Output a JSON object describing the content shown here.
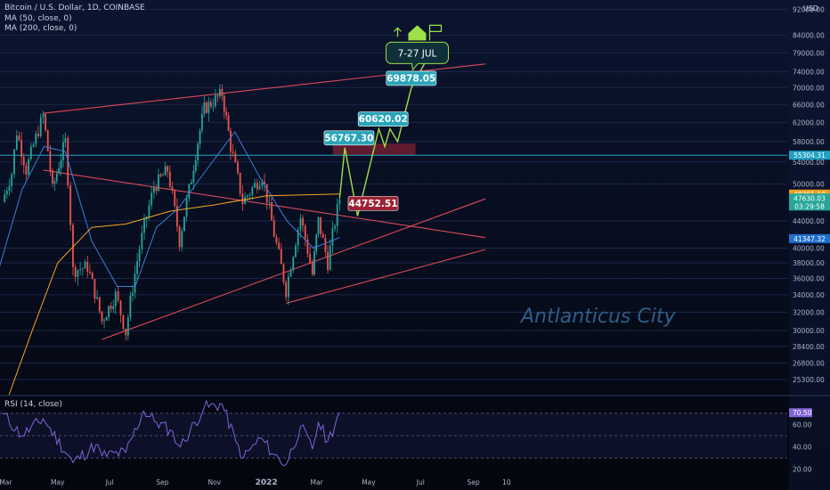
{
  "header": {
    "title": "Bitcoin / U.S. Dollar, 1D, COINBASE",
    "ma50_label": "MA (50, close, 0)",
    "ma200_label": "MA (200, close, 0)",
    "currency": "USD"
  },
  "watermark": "Antlanticus City",
  "colors": {
    "background_top": "#0b1530",
    "background_bottom": "#04060e",
    "up": "#26a69a",
    "down": "#ef5350",
    "ma50": "#3b7dd8",
    "ma200": "#f5a623",
    "projection": "#9ee04a",
    "trendline": "#d94a5a",
    "rsi": "#8065d6",
    "price_box": "#2aa5b8",
    "support_box": "#9b2335"
  },
  "chart_data": [
    {
      "type": "candlestick",
      "title": "Bitcoin / U.S. Dollar, 1D, COINBASE",
      "ylim": [
        24000,
        95000
      ],
      "y_ticks": [
        25300,
        26800,
        28400,
        30000,
        32000,
        34000,
        36000,
        38000,
        40000,
        44000,
        50000,
        54000,
        58000,
        62000,
        66000,
        70000,
        74000,
        79000,
        84000,
        92000
      ],
      "y_tick_labels": [
        "25300.00",
        "26800.00",
        "28400.00",
        "30000.00",
        "32000.00",
        "34000.00",
        "36000.00",
        "38000.00",
        "40000.00",
        "44000.00",
        "50000.00",
        "54000.00",
        "58000.00",
        "62000.00",
        "66000.00",
        "70000.00",
        "74000.00",
        "79000.00",
        "84000.00",
        "92000.00"
      ],
      "x_tick_labels": [
        "Mar",
        "May",
        "Jul",
        "Sep",
        "Nov",
        "2022",
        "Mar",
        "May",
        "Jul",
        "Sep",
        "10"
      ],
      "price_path": [
        {
          "date": "2021-02-25",
          "price": 47000
        },
        {
          "date": "2021-03-08",
          "price": 52000
        },
        {
          "date": "2021-03-14",
          "price": 60000
        },
        {
          "date": "2021-03-25",
          "price": 52500
        },
        {
          "date": "2021-04-14",
          "price": 63500
        },
        {
          "date": "2021-04-25",
          "price": 49000
        },
        {
          "date": "2021-05-10",
          "price": 58000
        },
        {
          "date": "2021-05-19",
          "price": 37000
        },
        {
          "date": "2021-06-05",
          "price": 37500
        },
        {
          "date": "2021-06-22",
          "price": 31000
        },
        {
          "date": "2021-07-08",
          "price": 34000
        },
        {
          "date": "2021-07-20",
          "price": 29800
        },
        {
          "date": "2021-08-05",
          "price": 40000
        },
        {
          "date": "2021-08-22",
          "price": 49500
        },
        {
          "date": "2021-09-07",
          "price": 52500
        },
        {
          "date": "2021-09-21",
          "price": 41000
        },
        {
          "date": "2021-10-05",
          "price": 51000
        },
        {
          "date": "2021-10-20",
          "price": 65000
        },
        {
          "date": "2021-11-10",
          "price": 68500
        },
        {
          "date": "2021-11-20",
          "price": 57000
        },
        {
          "date": "2021-12-04",
          "price": 47000
        },
        {
          "date": "2021-12-27",
          "price": 51500
        },
        {
          "date": "2022-01-10",
          "price": 42000
        },
        {
          "date": "2022-01-24",
          "price": 34500
        },
        {
          "date": "2022-02-10",
          "price": 44500
        },
        {
          "date": "2022-02-24",
          "price": 36500
        },
        {
          "date": "2022-03-03",
          "price": 44000
        },
        {
          "date": "2022-03-14",
          "price": 38000
        },
        {
          "date": "2022-03-28",
          "price": 47630
        }
      ],
      "series": [
        {
          "name": "MA (50, close, 0)",
          "points": [
            {
              "date": "2021-02-15",
              "price": 35000
            },
            {
              "date": "2021-03-20",
              "price": 49000
            },
            {
              "date": "2021-04-15",
              "price": 57000
            },
            {
              "date": "2021-05-10",
              "price": 56000
            },
            {
              "date": "2021-06-10",
              "price": 41000
            },
            {
              "date": "2021-07-10",
              "price": 35000
            },
            {
              "date": "2021-07-31",
              "price": 35000
            },
            {
              "date": "2021-08-25",
              "price": 43000
            },
            {
              "date": "2021-09-20",
              "price": 46000
            },
            {
              "date": "2021-10-20",
              "price": 52000
            },
            {
              "date": "2021-11-25",
              "price": 60000
            },
            {
              "date": "2021-12-25",
              "price": 51000
            },
            {
              "date": "2022-01-25",
              "price": 44000
            },
            {
              "date": "2022-02-25",
              "price": 40000
            },
            {
              "date": "2022-03-28",
              "price": 41500
            }
          ]
        },
        {
          "name": "MA (200, close, 0)",
          "points": [
            {
              "date": "2021-03-05",
              "price": 24000
            },
            {
              "date": "2021-04-01",
              "price": 30000
            },
            {
              "date": "2021-05-01",
              "price": 38000
            },
            {
              "date": "2021-06-10",
              "price": 43000
            },
            {
              "date": "2021-07-20",
              "price": 43500
            },
            {
              "date": "2021-09-10",
              "price": 45500
            },
            {
              "date": "2021-11-01",
              "price": 46500
            },
            {
              "date": "2022-01-01",
              "price": 48000
            },
            {
              "date": "2022-03-28",
              "price": 48301
            }
          ]
        }
      ],
      "projection": [
        {
          "date": "2022-03-28",
          "price": 47630
        },
        {
          "date": "2022-04-03",
          "price": 56767.3
        },
        {
          "date": "2022-04-18",
          "price": 44752.51
        },
        {
          "date": "2022-05-13",
          "price": 60620.02
        },
        {
          "date": "2022-05-20",
          "price": 57000
        },
        {
          "date": "2022-05-26",
          "price": 60620.02
        },
        {
          "date": "2022-06-04",
          "price": 58000
        },
        {
          "date": "2022-06-20",
          "price": 69878.05
        },
        {
          "date": "2022-07-10",
          "price": 78000
        }
      ],
      "trendlines": [
        {
          "from": {
            "date": "2021-04-14",
            "price": 64000
          },
          "to": {
            "date": "2022-09-15",
            "price": 76000
          }
        },
        {
          "from": {
            "date": "2021-04-14",
            "price": 52500
          },
          "to": {
            "date": "2022-09-15",
            "price": 41500
          }
        },
        {
          "from": {
            "date": "2021-06-22",
            "price": 29100
          },
          "to": {
            "date": "2022-09-15",
            "price": 47500
          }
        },
        {
          "from": {
            "date": "2022-01-24",
            "price": 33000
          },
          "to": {
            "date": "2022-09-15",
            "price": 39800
          }
        }
      ],
      "resistance_zone": {
        "from_date": "2022-03-20",
        "to_date": "2022-06-25",
        "low": 55304.31,
        "high": 57600
      },
      "horizontal_line": 55304.31,
      "price_labels": [
        {
          "text": "69878.05",
          "date": "2022-06-20",
          "price": 69878.05,
          "kind": "target"
        },
        {
          "text": "60620.02",
          "date": "2022-05-18",
          "price": 60620.02,
          "kind": "target"
        },
        {
          "text": "56767.30",
          "date": "2022-04-08",
          "price": 56767.3,
          "kind": "target"
        },
        {
          "text": "44752.51",
          "date": "2022-04-30",
          "price": 44752.51,
          "kind": "support"
        }
      ],
      "callout": {
        "text": "7-27 JUL",
        "date": "2022-06-27",
        "price": 79000
      },
      "axis_tags": [
        {
          "text": "55304.31",
          "price": 55304.31,
          "color": "#1fa2c4"
        },
        {
          "text": "48301.18",
          "price": 48301.18,
          "color": "#f0a023"
        },
        {
          "text": "47630.03",
          "price": 47630.03,
          "color": "#26a69a",
          "sub": "03:29:58"
        },
        {
          "text": "41347.32",
          "price": 41347.32,
          "color": "#1f6fd1"
        }
      ]
    },
    {
      "type": "line",
      "title": "RSI (14, close)",
      "ylim": [
        15,
        85
      ],
      "y_ticks": [
        20,
        40,
        60,
        70.5
      ],
      "y_tick_labels": [
        "20.00",
        "40.00",
        "60.00",
        "70.50"
      ],
      "levels": [
        70,
        50,
        30
      ],
      "current": 70.5,
      "points": [
        {
          "date": "2021-02-25",
          "value": 70
        },
        {
          "date": "2021-03-20",
          "value": 50
        },
        {
          "date": "2021-04-14",
          "value": 65
        },
        {
          "date": "2021-05-19",
          "value": 26
        },
        {
          "date": "2021-06-15",
          "value": 42
        },
        {
          "date": "2021-06-22",
          "value": 32
        },
        {
          "date": "2021-07-20",
          "value": 35
        },
        {
          "date": "2021-08-10",
          "value": 72
        },
        {
          "date": "2021-08-25",
          "value": 62
        },
        {
          "date": "2021-09-10",
          "value": 55
        },
        {
          "date": "2021-09-22",
          "value": 40
        },
        {
          "date": "2021-10-20",
          "value": 75
        },
        {
          "date": "2021-11-10",
          "value": 78
        },
        {
          "date": "2021-11-26",
          "value": 45
        },
        {
          "date": "2021-12-05",
          "value": 30
        },
        {
          "date": "2021-12-25",
          "value": 48
        },
        {
          "date": "2022-01-10",
          "value": 33
        },
        {
          "date": "2022-01-24",
          "value": 24
        },
        {
          "date": "2022-02-10",
          "value": 58
        },
        {
          "date": "2022-02-24",
          "value": 38
        },
        {
          "date": "2022-03-03",
          "value": 62
        },
        {
          "date": "2022-03-14",
          "value": 45
        },
        {
          "date": "2022-03-28",
          "value": 70.5
        }
      ]
    }
  ]
}
